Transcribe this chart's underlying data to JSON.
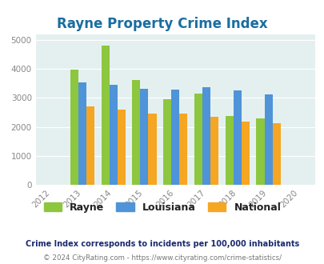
{
  "title": "Rayne Property Crime Index",
  "years": [
    2013,
    2014,
    2015,
    2016,
    2017,
    2018,
    2019
  ],
  "rayne": [
    3980,
    4820,
    3630,
    2960,
    3160,
    2380,
    2290
  ],
  "louisiana": [
    3540,
    3460,
    3330,
    3290,
    3360,
    3260,
    3120
  ],
  "national": [
    2720,
    2590,
    2470,
    2460,
    2350,
    2190,
    2120
  ],
  "rayne_color": "#8dc63f",
  "louisiana_color": "#4f93d8",
  "national_color": "#f5a623",
  "bg_color": "#e4f0f0",
  "title_color": "#1a6ea0",
  "xlim": [
    2011.5,
    2020.5
  ],
  "ylim": [
    0,
    5200
  ],
  "yticks": [
    0,
    1000,
    2000,
    3000,
    4000,
    5000
  ],
  "xticks": [
    2012,
    2013,
    2014,
    2015,
    2016,
    2017,
    2018,
    2019,
    2020
  ],
  "bar_width": 0.26,
  "footnote1": "Crime Index corresponds to incidents per 100,000 inhabitants",
  "footnote2": "© 2024 CityRating.com - https://www.cityrating.com/crime-statistics/",
  "footnote1_color": "#1a2a6e",
  "footnote2_color": "#777777",
  "grid_color": "#ffffff",
  "tick_color": "#888888"
}
